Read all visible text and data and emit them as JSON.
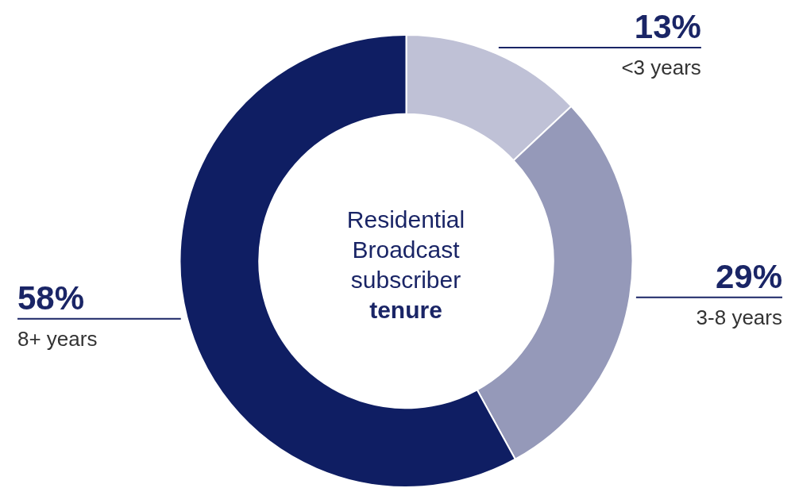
{
  "chart_data": {
    "type": "donut",
    "title": "Residential Broadcast subscriber",
    "subtitle": "tenure",
    "categories": [
      "<3 years",
      "3-8 years",
      "8+ years"
    ],
    "values": [
      13,
      29,
      58
    ],
    "colors": [
      "#bfc1d6",
      "#9599b9",
      "#0f1e63"
    ],
    "value_labels": [
      "13%",
      "29%",
      "58%"
    ],
    "legend": false
  }
}
